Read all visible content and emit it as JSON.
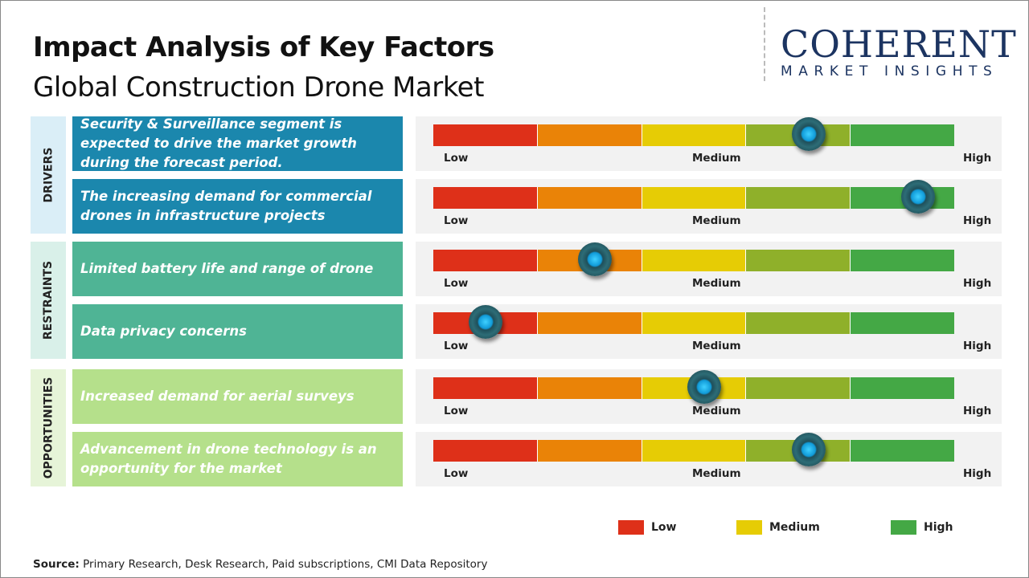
{
  "header": {
    "title": "Impact Analysis of Key Factors",
    "subtitle": "Global Construction Drone Market"
  },
  "logo": {
    "main": "COHERENT",
    "sub": "MARKET INSIGHTS"
  },
  "scale": {
    "low": "Low",
    "medium": "Medium",
    "high": "High"
  },
  "segment_colors": [
    "#de3019",
    "#ea8307",
    "#e6cc05",
    "#8fb02a",
    "#44a845"
  ],
  "categories": [
    {
      "label": "DRIVERS",
      "bg": "#daeef7"
    },
    {
      "label": "RESTRAINTS",
      "bg": "#d9f0e9"
    },
    {
      "label": "OPPORTUNITIES",
      "bg": "#e6f4d8"
    }
  ],
  "chart_data": {
    "type": "table",
    "scale": [
      "Low",
      "Medium",
      "High"
    ],
    "factors": [
      {
        "category": "DRIVERS",
        "text": "Security & Surveillance segment is expected to drive the market growth during the forecast period.",
        "impact_percent": 72,
        "color": "#1b87ad"
      },
      {
        "category": "DRIVERS",
        "text": "The increasing demand for commercial drones in infrastructure projects",
        "impact_percent": 93,
        "color": "#1b87ad"
      },
      {
        "category": "RESTRAINTS",
        "text": "Limited battery life and range of drone",
        "impact_percent": 31,
        "color": "#4fb495"
      },
      {
        "category": "RESTRAINTS",
        "text": "Data privacy concerns",
        "impact_percent": 10,
        "color": "#4fb495"
      },
      {
        "category": "OPPORTUNITIES",
        "text": "Increased demand for aerial surveys",
        "impact_percent": 52,
        "color": "#b5e08b"
      },
      {
        "category": "OPPORTUNITIES",
        "text": "Advancement in drone technology is an opportunity for the market",
        "impact_percent": 72,
        "color": "#b5e08b"
      }
    ],
    "legend": [
      {
        "label": "Low",
        "color": "#de3019"
      },
      {
        "label": "Medium",
        "color": "#e6cc05"
      },
      {
        "label": "High",
        "color": "#44a845"
      }
    ]
  },
  "source": {
    "label": "Source:",
    "text": " Primary Research, Desk Research, Paid subscriptions, CMI Data Repository"
  }
}
